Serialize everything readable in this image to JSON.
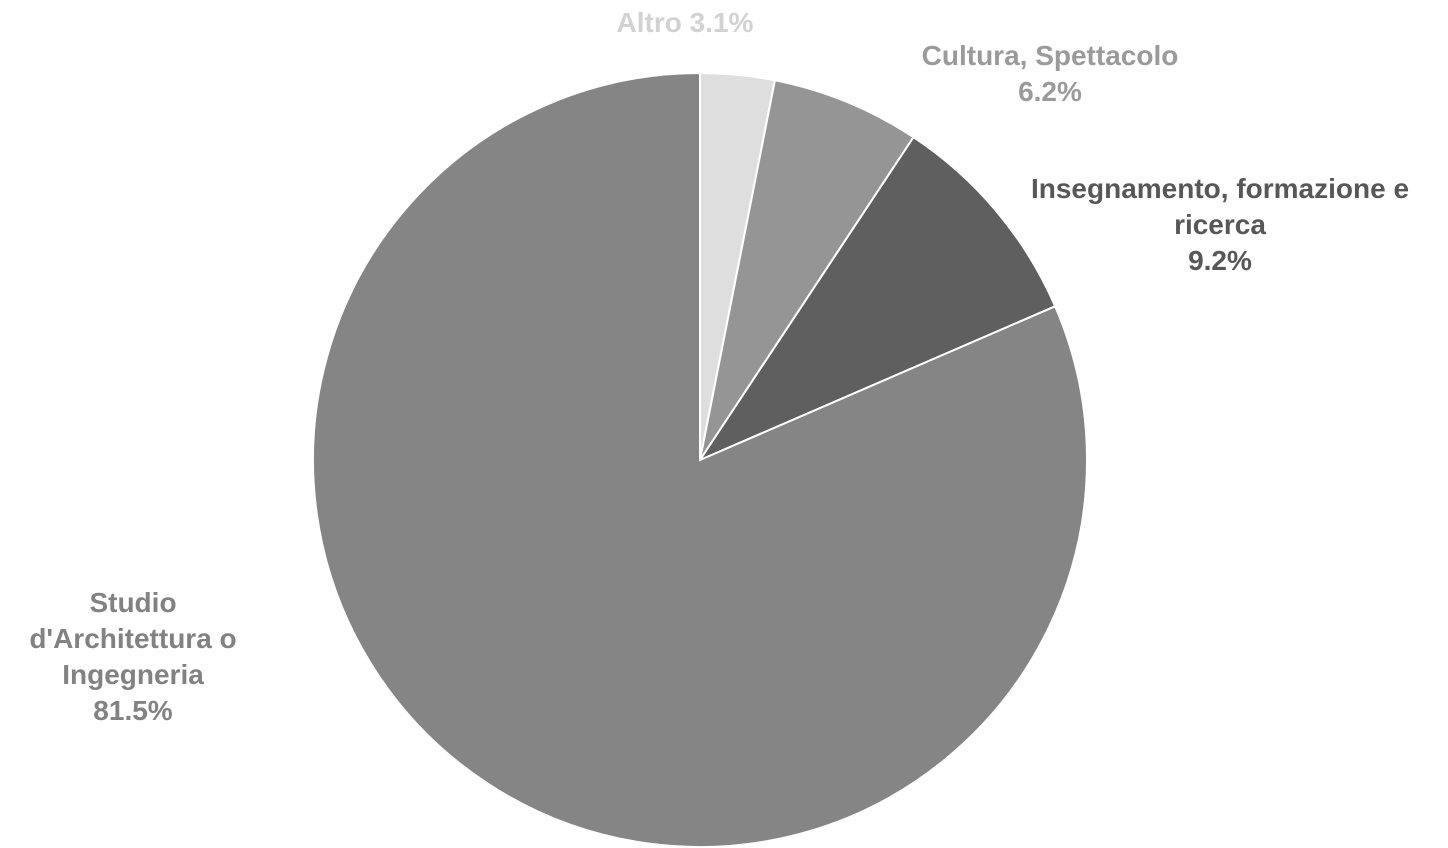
{
  "chart_data": {
    "type": "pie",
    "start_angle_deg": 0,
    "direction": "clockwise",
    "legend": "none",
    "slices": [
      {
        "name": "Altro",
        "value": 3.1,
        "label_lines": [
          "Altro 3.1%"
        ],
        "color": "#dedede",
        "label_color": "#d2d2d2"
      },
      {
        "name": "Cultura, Spettacolo",
        "value": 6.2,
        "label_lines": [
          "Cultura, Spettacolo",
          "6.2%"
        ],
        "color": "#959595",
        "label_color": "#9a9a9a"
      },
      {
        "name": "Insegnamento, formazione e ricerca",
        "value": 9.2,
        "label_lines": [
          "Insegnamento, formazione e",
          "ricerca",
          "9.2%"
        ],
        "color": "#5f5f5f",
        "label_color": "#575757"
      },
      {
        "name": "Studio d'Architettura o Ingegneria",
        "value": 81.5,
        "label_lines": [
          "Studio",
          "d'Architettura o",
          "Ingegneria",
          "81.5%"
        ],
        "color": "#858585",
        "label_color": "#828282"
      }
    ]
  }
}
